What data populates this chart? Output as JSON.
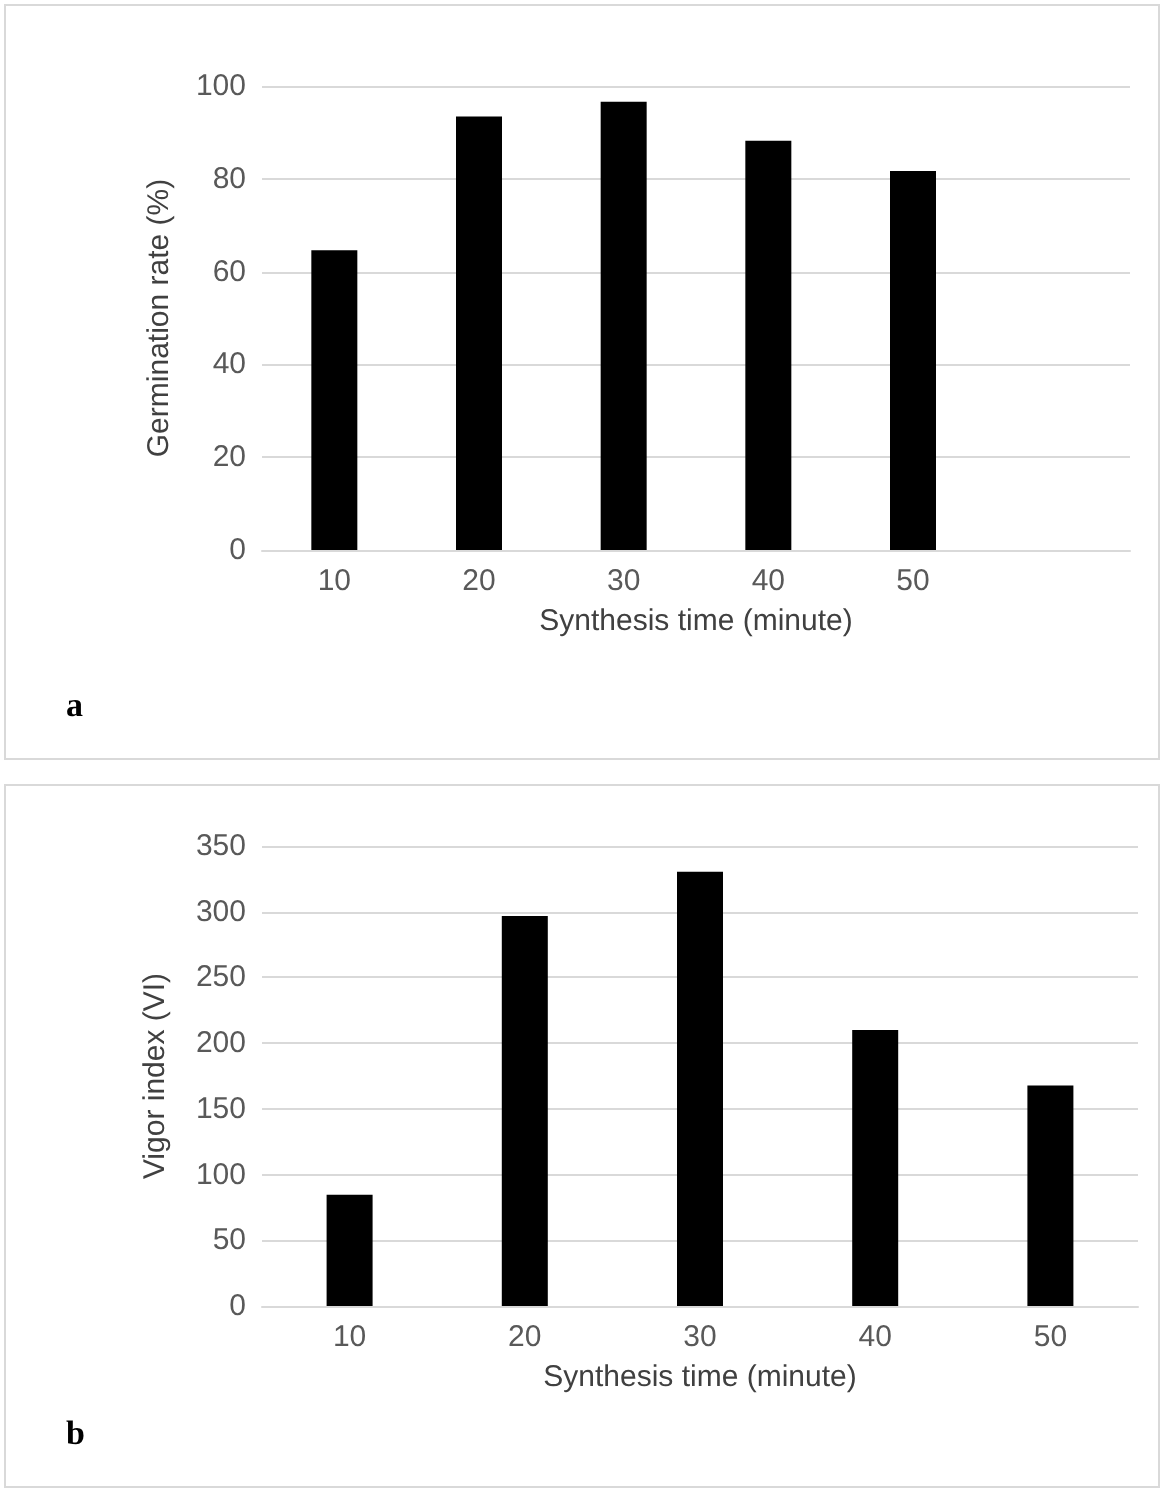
{
  "chart_data": [
    {
      "type": "bar",
      "categories": [
        "10",
        "20",
        "30",
        "40",
        "50",
        null
      ],
      "values": [
        64.6,
        93.4,
        96.6,
        88.2,
        81.7,
        null
      ],
      "color": "#000000",
      "xlabel": "Synthesis time (minute)",
      "ylabel": "Germination rate (%)",
      "ylim": [
        0,
        100
      ],
      "yticks": [
        0,
        20,
        40,
        60,
        80,
        100
      ],
      "grid": "y",
      "annotations": [
        "a"
      ]
    },
    {
      "type": "bar",
      "categories": [
        "10",
        "20",
        "30",
        "40",
        "50"
      ],
      "values": [
        84.7,
        296.8,
        330.4,
        210,
        167.8
      ],
      "color": "#000000",
      "xlabel": "Synthesis time (minute)",
      "ylabel": "Vigor index (VI)",
      "ylim": [
        0,
        350
      ],
      "yticks": [
        0,
        50,
        100,
        150,
        200,
        250,
        300,
        350
      ],
      "grid": "y",
      "annotations": [
        "b"
      ]
    }
  ]
}
